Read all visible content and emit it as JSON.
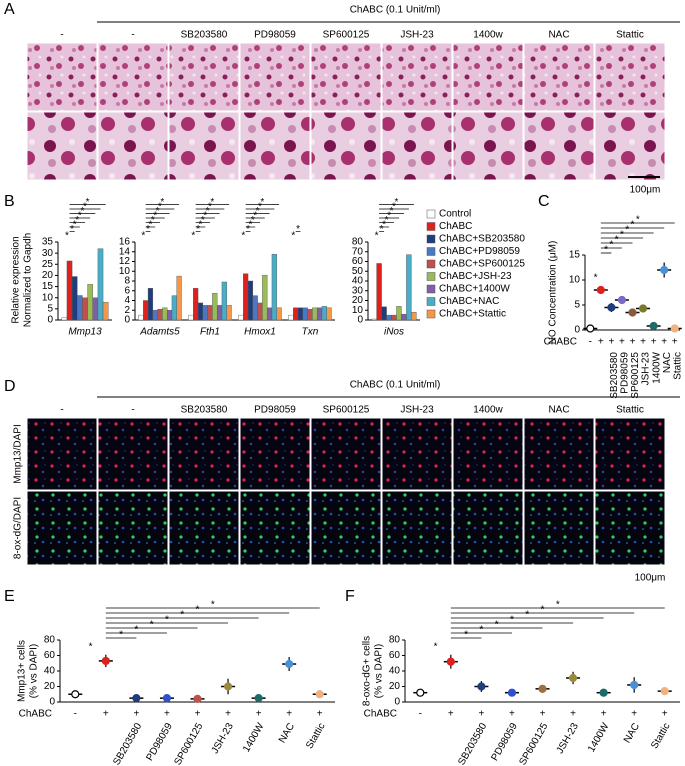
{
  "panel_labels": [
    "A",
    "B",
    "C",
    "D",
    "E",
    "F"
  ],
  "histology": {
    "header": "ChABC (0.1 Unit/ml)",
    "columns": [
      "-",
      "-",
      "SB203580",
      "PD98059",
      "SP600125",
      "JSH-23",
      "1400w",
      "NAC",
      "Stattic"
    ],
    "scale": "100μm"
  },
  "fluorescence": {
    "header": "ChABC (0.1 Unit/ml)",
    "columns": [
      "-",
      "-",
      "SB203580",
      "PD98059",
      "SP600125",
      "JSH-23",
      "1400w",
      "NAC",
      "Stattic"
    ],
    "row_labels": [
      "Mmp13/DAPI",
      "8-ox-dG/DAPI"
    ],
    "scale": "100μm"
  },
  "chart_data": [
    {
      "type": "grouped_bar",
      "ylabel": [
        "Relative expression",
        "Normalized to Gapdh"
      ],
      "axes": [
        {
          "categories": [
            "Mmp13"
          ],
          "ylim": [
            0,
            35
          ],
          "yticks": [
            0,
            5,
            10,
            15,
            20,
            25,
            30,
            35
          ]
        },
        {
          "categories": [
            "Adamts5",
            "Fth1",
            "Hmox1",
            "Txn"
          ],
          "ylim": [
            0,
            16
          ],
          "yticks": [
            0,
            2,
            4,
            6,
            8,
            10,
            12,
            14,
            16
          ]
        },
        {
          "categories": [
            "iNos"
          ],
          "ylim": [
            0,
            80
          ],
          "yticks": [
            0,
            10,
            20,
            30,
            40,
            50,
            60,
            70,
            80
          ]
        }
      ],
      "annotations": [
        [
          "*",
          "*",
          "*",
          "*",
          "*",
          "*",
          "*",
          "*"
        ],
        [
          "*",
          "*",
          "*",
          "*",
          "*",
          "*",
          "*",
          "*"
        ],
        [
          "*",
          "*",
          "*",
          "*",
          "*",
          "*",
          "*",
          "*"
        ],
        [
          "*",
          "*",
          "*",
          "*",
          "*",
          "*",
          "*",
          "*"
        ],
        [
          "*",
          "*"
        ],
        [
          "*",
          "*",
          "*",
          "*",
          "*",
          "*",
          "*",
          "*"
        ]
      ],
      "series": [
        {
          "name": "Control",
          "color": "#ffffff",
          "values": [
            1,
            1,
            1,
            1,
            1,
            1
          ]
        },
        {
          "name": "ChABC",
          "color": "#e0201b",
          "values": [
            26.5,
            4,
            6.5,
            9.5,
            2.5,
            58
          ]
        },
        {
          "name": "ChABC+SB203580",
          "color": "#1f3d7a",
          "values": [
            19.5,
            6.5,
            3.5,
            8,
            2.5,
            13.5
          ]
        },
        {
          "name": "ChABC+PD98059",
          "color": "#4a78c2",
          "values": [
            11,
            2,
            3,
            5,
            2.5,
            5
          ]
        },
        {
          "name": "ChABC+SP600125",
          "color": "#c0504d",
          "values": [
            10,
            2.2,
            3,
            3.5,
            2.2,
            5
          ]
        },
        {
          "name": "ChABC+JSH-23",
          "color": "#9bbb59",
          "values": [
            16,
            2.5,
            5.5,
            9.2,
            2.5,
            14
          ]
        },
        {
          "name": "ChABC+1400W",
          "color": "#7f60a8",
          "values": [
            10,
            2,
            3,
            2.5,
            2.5,
            6
          ]
        },
        {
          "name": "ChABC+NAC",
          "color": "#4bacc6",
          "values": [
            32,
            5,
            7.8,
            13.5,
            2.8,
            67
          ]
        },
        {
          "name": "ChABC+Stattic",
          "color": "#f79646",
          "values": [
            8,
            9,
            3,
            2.5,
            2.5,
            8
          ]
        }
      ]
    },
    {
      "type": "dot",
      "ylabel": [
        "NO Concentration (μM)"
      ],
      "xlabel": "ChABC",
      "signs": [
        "-",
        "+",
        "+",
        "+",
        "+",
        "+",
        "+",
        "+",
        "+"
      ],
      "categories": [
        null,
        null,
        "SB203580",
        "PD98059",
        "SP600125",
        "JSH-23",
        "1400W",
        "NAC",
        "Stattic"
      ],
      "values": [
        0.3,
        8,
        4.5,
        6,
        3.5,
        4.3,
        0.8,
        12,
        0.3
      ],
      "errors": [
        0.2,
        0.8,
        0.9,
        0.8,
        0.5,
        0.3,
        0.3,
        1.5,
        0.2
      ],
      "colors": [
        "#000000",
        "#e0201b",
        "#1f3d7a",
        "#7b68c8",
        "#8b5a3c",
        "#7a7a2a",
        "#1f6b6b",
        "#4a90d9",
        "#f0b080"
      ],
      "ylim": [
        0,
        15
      ],
      "yticks": [
        0,
        5,
        10,
        15
      ],
      "annotations": [
        "*",
        "*",
        "*",
        "*",
        "*",
        "*",
        "*",
        "*"
      ]
    },
    {
      "type": "dot",
      "ylabel": [
        "Mmp13+ cells",
        "(% vs DAPI)"
      ],
      "xlabel": "ChABC",
      "signs": [
        "-",
        "+",
        "+",
        "+",
        "+",
        "+",
        "+",
        "+",
        "+"
      ],
      "categories": [
        null,
        null,
        "SB203580",
        "PD98059",
        "SP600125",
        "JSH-23",
        "1400W",
        "NAC",
        "Stattic"
      ],
      "values": [
        10,
        53,
        5,
        5,
        4,
        20,
        5,
        49,
        10
      ],
      "errors": [
        3,
        8,
        1,
        2,
        2,
        10,
        3,
        9,
        2
      ],
      "colors": [
        "#000000",
        "#e0201b",
        "#1f3d7a",
        "#3050d0",
        "#c0504d",
        "#9a8a3a",
        "#1f6b6b",
        "#4a90d9",
        "#f0b080"
      ],
      "ylim": [
        0,
        80
      ],
      "yticks": [
        0,
        20,
        40,
        60,
        80
      ],
      "annotations": [
        "*",
        "*",
        "*",
        "*",
        "*",
        "*",
        "*",
        "*"
      ]
    },
    {
      "type": "dot",
      "ylabel": [
        "8-oxo-dG+ cells",
        "(% vs DAPI)"
      ],
      "xlabel": "ChABC",
      "signs": [
        "-",
        "+",
        "+",
        "+",
        "+",
        "+",
        "+",
        "+",
        "+"
      ],
      "categories": [
        null,
        null,
        "SB203580",
        "PD98059",
        "SP600125",
        "JSH-23",
        "1400W",
        "NAC",
        "Stattic"
      ],
      "values": [
        12,
        52,
        20,
        12,
        17,
        31,
        12,
        22,
        14
      ],
      "errors": [
        3,
        9,
        7,
        4,
        5,
        8,
        5,
        10,
        4
      ],
      "colors": [
        "#000000",
        "#e0201b",
        "#1f3d7a",
        "#3050d0",
        "#a0703c",
        "#9a8a3a",
        "#1f6b6b",
        "#4a90d9",
        "#f0b080"
      ],
      "ylim": [
        0,
        80
      ],
      "yticks": [
        0,
        20,
        40,
        60,
        80
      ],
      "annotations": [
        "*",
        "*",
        "*",
        "*",
        "*",
        "*",
        "*",
        "*"
      ]
    }
  ]
}
